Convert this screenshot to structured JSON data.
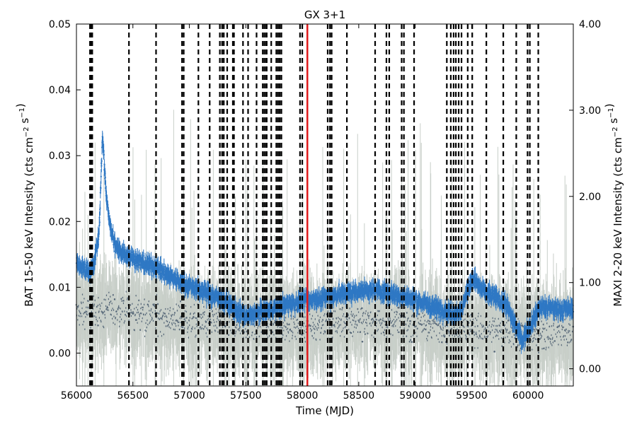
{
  "chart_data": {
    "type": "scatter",
    "title": "GX 3+1",
    "xlabel": "Time (MJD)",
    "ylabel_left": "BAT 15-50 keV Intensity (cts cm$^{-2}$ s$^{-1}$)",
    "ylabel_right": "MAXI 2-20 keV Intensity (cts cm$^{-2}$ s$^{-1}$)",
    "xlim": [
      56000,
      60400
    ],
    "ylim_left": [
      -0.005,
      0.05
    ],
    "ylim_right": [
      -0.2,
      4.0
    ],
    "x_ticks": [
      56000,
      56500,
      57000,
      57500,
      58000,
      58500,
      59000,
      59500,
      60000
    ],
    "x_tick_labels": [
      "56000",
      "56500",
      "57000",
      "57500",
      "58000",
      "58500",
      "59000",
      "59500",
      "60000"
    ],
    "y_left_ticks": [
      0.0,
      0.01,
      0.02,
      0.03,
      0.04,
      0.05
    ],
    "y_left_tick_labels": [
      "0.00",
      "0.01",
      "0.02",
      "0.03",
      "0.04",
      "0.05"
    ],
    "y_right_ticks": [
      0.0,
      1.0,
      2.0,
      3.0,
      4.0
    ],
    "y_right_tick_labels": [
      "0.00",
      "1.00",
      "2.00",
      "3.00",
      "4.00"
    ],
    "grid": false,
    "red_line_x": 58045,
    "dashed_lines_x": [
      56120,
      56125,
      56130,
      56135,
      56140,
      56465,
      56705,
      56935,
      56950,
      57080,
      57180,
      57270,
      57290,
      57305,
      57335,
      57385,
      57395,
      57475,
      57520,
      57595,
      57650,
      57665,
      57680,
      57685,
      57725,
      57770,
      57785,
      57800,
      57815,
      57980,
      58000,
      58225,
      58245,
      58260,
      58395,
      58645,
      58745,
      58770,
      58880,
      58900,
      58990,
      59280,
      59315,
      59340,
      59360,
      59385,
      59410,
      59465,
      59505,
      59630,
      59780,
      59895,
      59995,
      60015,
      60090
    ],
    "series": [
      {
        "name": "BAT 15-50 keV",
        "axis": "left",
        "color": "#2f78c4",
        "anchors_x": [
          56000,
          56100,
          56150,
          56200,
          56230,
          56260,
          56300,
          56350,
          56450,
          56550,
          56700,
          56900,
          57100,
          57300,
          57500,
          57700,
          57900,
          58050,
          58200,
          58500,
          58700,
          59000,
          59250,
          59400,
          59500,
          59600,
          59800,
          59950,
          60100,
          60400
        ],
        "anchors_y": [
          0.0135,
          0.0125,
          0.013,
          0.018,
          0.033,
          0.025,
          0.019,
          0.016,
          0.015,
          0.014,
          0.013,
          0.011,
          0.0095,
          0.008,
          0.0055,
          0.0065,
          0.0075,
          0.008,
          0.0085,
          0.0095,
          0.0095,
          0.008,
          0.0065,
          0.006,
          0.0115,
          0.0095,
          0.0075,
          0.002,
          0.007,
          0.0065
        ]
      },
      {
        "name": "MAXI 2-20 keV",
        "axis": "right",
        "color": "#556677",
        "err_color": "#c8cfc9",
        "anchors_x": [
          56000,
          56400,
          56800,
          57200,
          57600,
          58000,
          58400,
          58800,
          59200,
          59600,
          60000,
          60400
        ],
        "anchors_y": [
          0.65,
          0.68,
          0.6,
          0.52,
          0.5,
          0.5,
          0.55,
          0.55,
          0.5,
          0.45,
          0.4,
          0.45
        ]
      }
    ]
  }
}
